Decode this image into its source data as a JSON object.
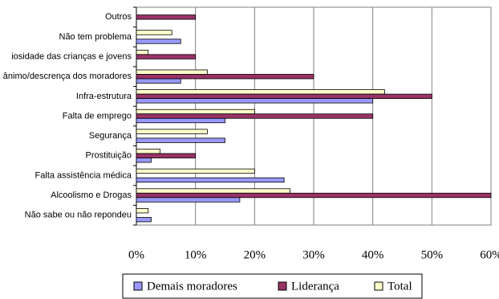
{
  "chart_data": {
    "type": "bar",
    "orientation": "horizontal",
    "categories": [
      "Outros",
      "Não tem problema",
      "iosidade das crianças e jovens",
      "ânimo/descrença dos moradores",
      "Infra-estrutura",
      "Falta de emprego",
      "Segurança",
      "Prostituição",
      "Falta assistência médica",
      "Alcoolismo e Drogas",
      "Não sabe ou não repondeu"
    ],
    "series": [
      {
        "name": "Demais moradores",
        "color": "#9999ff",
        "values": [
          0,
          7.5,
          0,
          7.5,
          40,
          15,
          15,
          2.5,
          25,
          17.5,
          2.5
        ]
      },
      {
        "name": "Liderança",
        "color": "#993366",
        "values": [
          10,
          0,
          10,
          30,
          50,
          40,
          0,
          10,
          0,
          60,
          0
        ]
      },
      {
        "name": "Total",
        "color": "#ffffcc",
        "values": [
          0,
          6,
          2,
          12,
          42,
          20,
          12,
          4,
          20,
          26,
          2
        ]
      }
    ],
    "xlim": [
      0,
      60
    ],
    "xticks": [
      {
        "value": 0,
        "label": "0%"
      },
      {
        "value": 10,
        "label": "10%"
      },
      {
        "value": 20,
        "label": "20%"
      },
      {
        "value": 30,
        "label": "30%"
      },
      {
        "value": 40,
        "label": "40%"
      },
      {
        "value": 50,
        "label": "50%"
      },
      {
        "value": 60,
        "label": "60%"
      }
    ],
    "grid": true,
    "legend": "bottom"
  }
}
